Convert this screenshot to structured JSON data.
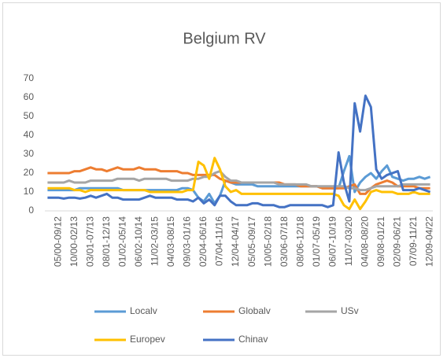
{
  "chart_data": {
    "type": "line",
    "title": "Belgium RV",
    "categories": [
      null,
      null,
      "05/00-09/12",
      null,
      null,
      "10/00-02/13",
      null,
      null,
      "03/01-07/13",
      null,
      null,
      "08/01-12/13",
      null,
      null,
      "01/02-05/14",
      null,
      null,
      "06/02-10/14",
      null,
      null,
      "11/02-03/15",
      null,
      null,
      "04/03-08/15",
      null,
      null,
      "09/03-01/16",
      null,
      null,
      "02/04-06/16",
      null,
      null,
      "07/04-11/16",
      null,
      null,
      "12/04-04/17",
      null,
      null,
      "05/05-09/17",
      null,
      null,
      "10/05-02/18",
      null,
      null,
      "03/06-07/18",
      null,
      null,
      "08/06-12/18",
      null,
      null,
      "01/07-05/19",
      null,
      null,
      "06/07-10/19",
      null,
      null,
      "11/07-03/20",
      null,
      null,
      "04/08-08/20",
      null,
      null,
      "09/08-01/21",
      null,
      null,
      "02/09-06/21",
      null,
      null,
      "07/09-11/21",
      null,
      null,
      "12/09-04/22"
    ],
    "series": [
      {
        "name": "Localv",
        "color": "#5B9BD5",
        "values": [
          11,
          11,
          11,
          11,
          11,
          11,
          12,
          12,
          12,
          12,
          12,
          12,
          12,
          12,
          11,
          11,
          11,
          11,
          11,
          11,
          11,
          11,
          11,
          11,
          11,
          12,
          12,
          11,
          7,
          5,
          9,
          4,
          8,
          16,
          15,
          14,
          14,
          14,
          14,
          13,
          13,
          13,
          13,
          13,
          13,
          13,
          13,
          13,
          13,
          13,
          13,
          12,
          12,
          12,
          12,
          21,
          29,
          10,
          15,
          18,
          20,
          17,
          21,
          24,
          18,
          17,
          16,
          17,
          17,
          18,
          17,
          18
        ]
      },
      {
        "name": "Globalv",
        "color": "#ED7D31",
        "values": [
          20,
          20,
          20,
          20,
          20,
          21,
          21,
          22,
          23,
          22,
          22,
          21,
          22,
          23,
          22,
          22,
          22,
          23,
          22,
          22,
          22,
          21,
          21,
          21,
          21,
          20,
          20,
          19,
          19,
          19,
          19,
          19,
          17,
          16,
          15,
          15,
          15,
          15,
          15,
          15,
          15,
          15,
          15,
          15,
          14,
          14,
          14,
          13,
          13,
          13,
          13,
          12,
          12,
          12,
          12,
          12,
          13,
          14,
          9,
          9,
          12,
          14,
          15,
          16,
          15,
          13,
          13,
          13,
          13,
          12,
          12,
          12
        ]
      },
      {
        "name": "USv",
        "color": "#A5A5A5",
        "values": [
          15,
          15,
          15,
          15,
          16,
          15,
          15,
          15,
          16,
          16,
          16,
          16,
          16,
          17,
          17,
          17,
          17,
          16,
          17,
          17,
          17,
          17,
          17,
          16,
          16,
          16,
          16,
          17,
          17,
          18,
          18,
          20,
          21,
          18,
          16,
          16,
          15,
          15,
          15,
          15,
          15,
          15,
          15,
          14,
          14,
          14,
          14,
          14,
          14,
          13,
          13,
          13,
          13,
          13,
          13,
          13,
          12,
          12,
          11,
          11,
          12,
          13,
          13,
          13,
          13,
          13,
          14,
          14,
          14,
          14,
          14,
          14
        ]
      },
      {
        "name": "Europev",
        "color": "#FFC000",
        "values": [
          12,
          12,
          12,
          12,
          12,
          11,
          11,
          10,
          11,
          11,
          11,
          11,
          11,
          11,
          11,
          11,
          11,
          11,
          11,
          10,
          10,
          10,
          10,
          10,
          10,
          10,
          11,
          11,
          26,
          24,
          17,
          28,
          22,
          13,
          10,
          11,
          9,
          9,
          9,
          9,
          9,
          9,
          9,
          9,
          9,
          9,
          9,
          9,
          9,
          9,
          9,
          9,
          9,
          9,
          8,
          3,
          1,
          6,
          1,
          5,
          10,
          11,
          10,
          10,
          10,
          9,
          9,
          9,
          10,
          9,
          9,
          9
        ]
      },
      {
        "name": "Chinav",
        "color": "#4472C4",
        "values": [
          7,
          7,
          7,
          6.5,
          7,
          7,
          6.5,
          7,
          8,
          7,
          8,
          9,
          7,
          7,
          6,
          6,
          6,
          6,
          7,
          8,
          7,
          7,
          7,
          7,
          6,
          6,
          6,
          5,
          7,
          4,
          6,
          3,
          8,
          8,
          5,
          3,
          3,
          3,
          4,
          4,
          3,
          3,
          3,
          2,
          2,
          3,
          3,
          3,
          3,
          3,
          3,
          3,
          2,
          3,
          31,
          15,
          5,
          57,
          42,
          61,
          55,
          22,
          17,
          19,
          20,
          21,
          11,
          11,
          11,
          12,
          11,
          10
        ]
      }
    ],
    "ylim": [
      0,
      70
    ],
    "yticks": [
      0,
      10,
      20,
      30,
      40,
      50,
      60,
      70
    ],
    "grid": false
  }
}
